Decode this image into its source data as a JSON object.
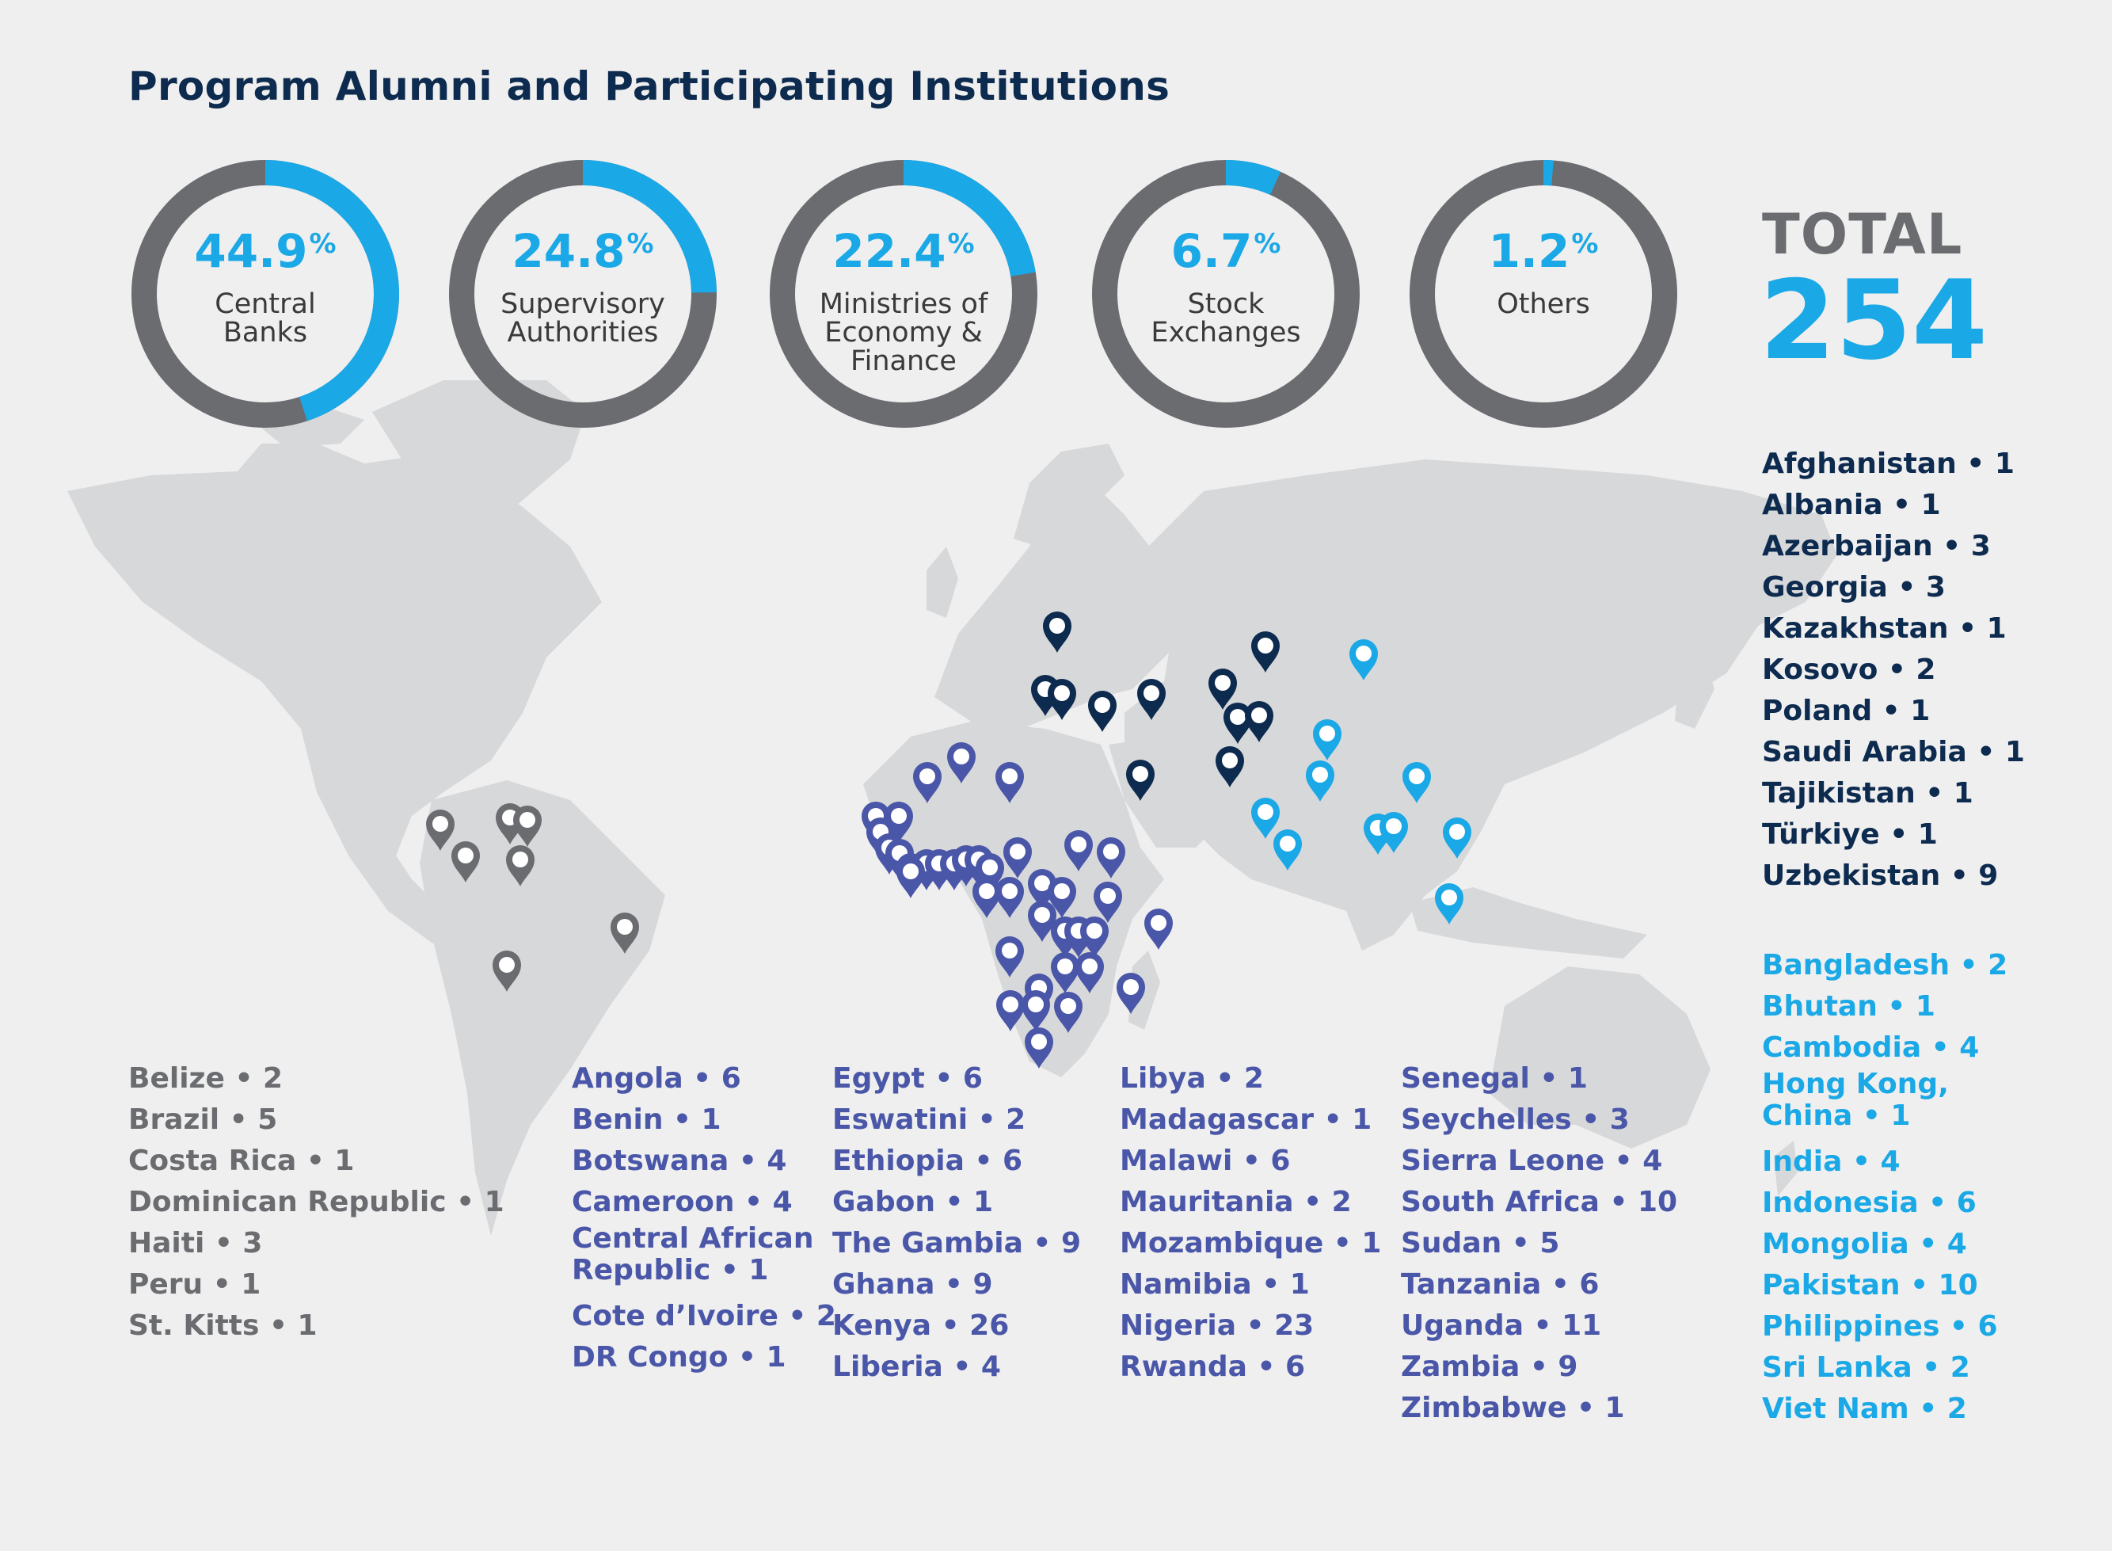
{
  "title": "Program Alumni and Participating Institutions",
  "colors": {
    "ring_fill": "#1aa8e6",
    "ring_track": "#6b6c70",
    "americas": "#6b6c70",
    "africa": "#4a56a8",
    "europe_central_asia": "#0d2a4f",
    "asia_pacific": "#1aa8e6",
    "land": "#d7d8da"
  },
  "institution_types": [
    {
      "value": "44.9",
      "unit": "%",
      "label": "Central\nBanks",
      "share": 0.449
    },
    {
      "value": "24.8",
      "unit": "%",
      "label": "Supervisory\nAuthorities",
      "share": 0.248
    },
    {
      "value": "22.4",
      "unit": "%",
      "label": "Ministries of\nEconomy &\nFinance",
      "share": 0.224
    },
    {
      "value": "6.7",
      "unit": "%",
      "label": "Stock\nExchanges",
      "share": 0.067
    },
    {
      "value": "1.2",
      "unit": "%",
      "label": "Others",
      "share": 0.012
    }
  ],
  "total": {
    "label": "TOTAL",
    "value": "254"
  },
  "americas": [
    "Belize • 2",
    "Brazil • 5",
    "Costa Rica • 1",
    "Dominican Republic • 1",
    "Haiti • 3",
    "Peru • 1",
    "St. Kitts • 1"
  ],
  "africa_1": [
    "Angola • 6",
    "Benin • 1",
    "Botswana • 4",
    "Cameroon • 4",
    "Central African\nRepublic • 1",
    "Cote d’Ivoire • 2",
    "DR Congo • 1"
  ],
  "africa_2": [
    "Egypt • 6",
    "Eswatini • 2",
    "Ethiopia • 6",
    "Gabon • 1",
    "The Gambia • 9",
    "Ghana • 9",
    "Kenya • 26",
    "Liberia • 4"
  ],
  "africa_3": [
    "Libya • 2",
    "Madagascar • 1",
    "Malawi • 6",
    "Mauritania • 2",
    "Mozambique • 1",
    "Namibia • 1",
    "Nigeria • 23",
    "Rwanda • 6"
  ],
  "africa_4": [
    "Senegal • 1",
    "Seychelles • 3",
    "Sierra Leone • 4",
    "South Africa • 10",
    "Sudan • 5",
    "Tanzania • 6",
    "Uganda • 11",
    "Zambia • 9",
    "Zimbabwe • 1"
  ],
  "europe_central_asia": [
    "Afghanistan • 1",
    "Albania • 1",
    "Azerbaijan • 3",
    "Georgia • 3",
    "Kazakhstan • 1",
    "Kosovo • 2",
    "Poland • 1",
    "Saudi Arabia • 1",
    "Tajikistan • 1",
    "Türkiye • 1",
    "Uzbekistan • 9"
  ],
  "asia_pacific": [
    "Bangladesh • 2",
    "Bhutan • 1",
    "Cambodia • 4",
    "Hong Kong,\nChina • 1",
    "India • 4",
    "Indonesia • 6",
    "Mongolia • 4",
    "Pakistan • 10",
    "Philippines • 6",
    "Sri Lanka • 2",
    "Viet Nam • 2"
  ]
}
